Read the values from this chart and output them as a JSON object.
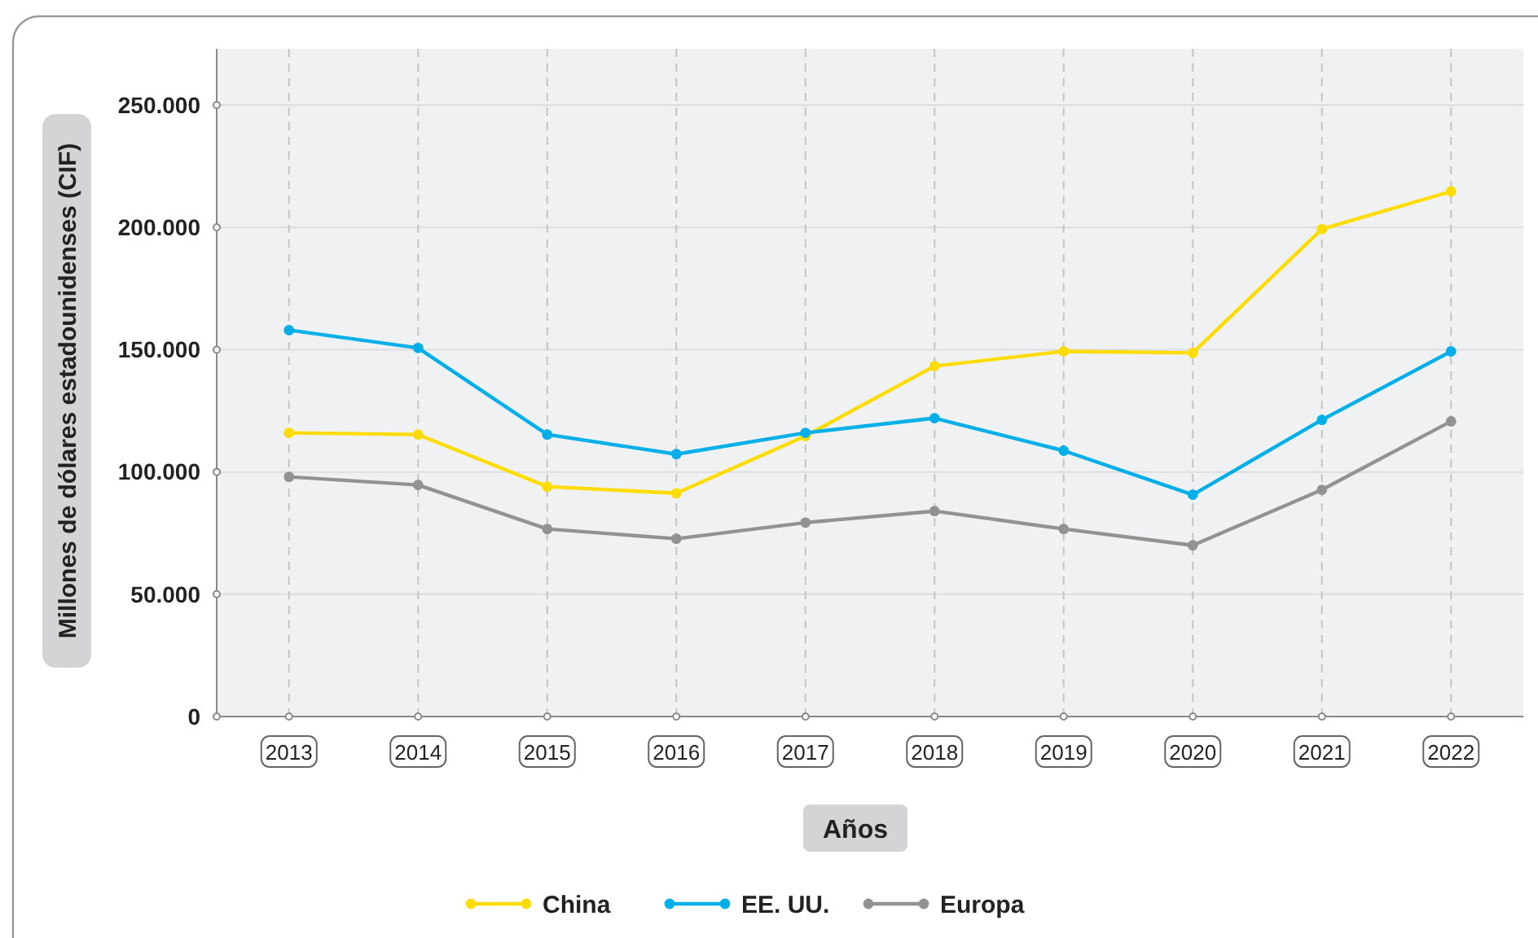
{
  "chart_data": {
    "type": "line",
    "ylabel": "Millones de dólares estadounidenses (CIF)",
    "xlabel": "Años",
    "categories": [
      "2013",
      "2014",
      "2015",
      "2016",
      "2017",
      "2018",
      "2019",
      "2020",
      "2021",
      "2022"
    ],
    "series": [
      {
        "name": "China",
        "color": "#ffdc00",
        "values": [
          116000,
          115300,
          94000,
          91300,
          114700,
          143300,
          149300,
          148700,
          199300,
          214700
        ]
      },
      {
        "name": "EE. UU.",
        "color": "#00aee8",
        "values": [
          158000,
          150700,
          115300,
          107300,
          116000,
          122000,
          108700,
          90700,
          121300,
          149300
        ]
      },
      {
        "name": "Europa",
        "color": "#929292",
        "values": [
          98000,
          94700,
          76700,
          72700,
          79300,
          84000,
          76700,
          70000,
          92700,
          120700
        ]
      }
    ],
    "ylim": [
      0,
      273000
    ],
    "yticks": [
      {
        "value": 0,
        "label": "0"
      },
      {
        "value": 50000,
        "label": "50.000"
      },
      {
        "value": 100000,
        "label": "100.000"
      },
      {
        "value": 150000,
        "label": "150.000"
      },
      {
        "value": 200000,
        "label": "200.000"
      },
      {
        "value": 250000,
        "label": "250.000"
      }
    ],
    "grid": true,
    "legend": "bottom",
    "marker": "circle",
    "line_style": "solid"
  }
}
